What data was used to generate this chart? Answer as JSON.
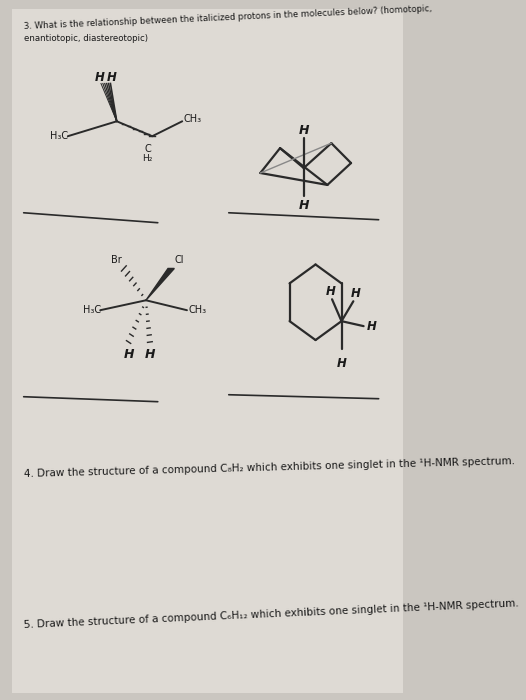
{
  "background_color": "#cac6c0",
  "page_color": "#dedad4",
  "line_color": "#2a2a2a",
  "text_color": "#1a1a1a",
  "fig_width": 5.26,
  "fig_height": 7.0,
  "dpi": 100,
  "q3_line1": "3. What is the relationship between the italicized protons in the molecules below? (homotopic,",
  "q3_line2": "enantiotopic, diastereotopic)",
  "q4_text": "4. Draw the structure of a compound C₈H₂ which exhibits one singlet in the ¹H-NMR spectrum.",
  "q5_text": "5. Draw the structure of a compound C₆H₁₂ which exhibits one singlet in the ¹H-NMR spectrum."
}
